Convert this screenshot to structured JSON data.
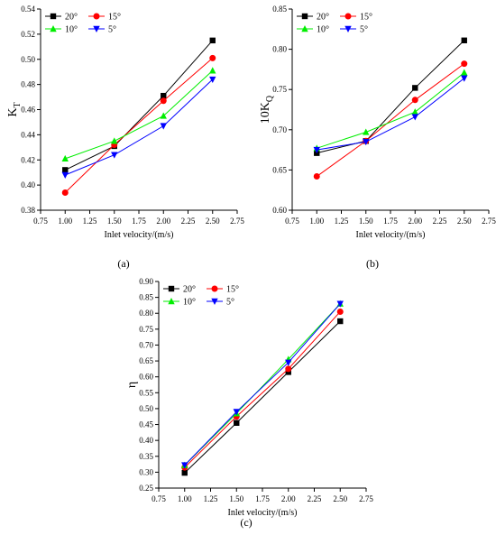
{
  "chart_data": [
    {
      "type": "line",
      "panel_label": "(a)",
      "xlabel": "Inlet velocity/(m/s)",
      "ylabel": "K",
      "ylabel_sub": "T",
      "xlim": [
        0.75,
        2.75
      ],
      "ylim": [
        0.38,
        0.54
      ],
      "xticks": [
        "0.75",
        "1.00",
        "1.25",
        "1.50",
        "1.75",
        "2.00",
        "2.25",
        "2.50",
        "2.75"
      ],
      "yticks": [
        "0.38",
        "0.40",
        "0.42",
        "0.44",
        "0.46",
        "0.48",
        "0.50",
        "0.52",
        "0.54"
      ],
      "x": [
        1.0,
        1.5,
        2.0,
        2.5
      ],
      "legend_position": "top-left",
      "series": [
        {
          "name": "20°",
          "color": "#000000",
          "marker": "square",
          "values": [
            0.412,
            0.431,
            0.471,
            0.515
          ]
        },
        {
          "name": "15°",
          "color": "#ff0000",
          "marker": "circle",
          "values": [
            0.394,
            0.432,
            0.467,
            0.501
          ]
        },
        {
          "name": "10°",
          "color": "#00ee00",
          "marker": "triangle-up",
          "values": [
            0.421,
            0.435,
            0.455,
            0.491
          ]
        },
        {
          "name": "5°",
          "color": "#0000ff",
          "marker": "triangle-down",
          "values": [
            0.408,
            0.424,
            0.447,
            0.484
          ]
        }
      ]
    },
    {
      "type": "line",
      "panel_label": "(b)",
      "xlabel": "Inlet velocity/(m/s)",
      "ylabel": "10K",
      "ylabel_sub": "Q",
      "xlim": [
        0.75,
        2.75
      ],
      "ylim": [
        0.6,
        0.85
      ],
      "xticks": [
        "0.75",
        "1.00",
        "1.25",
        "1.50",
        "1.75",
        "2.00",
        "2.25",
        "2.50",
        "2.75"
      ],
      "yticks": [
        "0.60",
        "0.65",
        "0.70",
        "0.75",
        "0.80",
        "0.85"
      ],
      "x": [
        1.0,
        1.5,
        2.0,
        2.5
      ],
      "legend_position": "top-left",
      "series": [
        {
          "name": "20°",
          "color": "#000000",
          "marker": "square",
          "values": [
            0.671,
            0.686,
            0.752,
            0.811
          ]
        },
        {
          "name": "15°",
          "color": "#ff0000",
          "marker": "circle",
          "values": [
            0.642,
            0.686,
            0.737,
            0.782
          ]
        },
        {
          "name": "10°",
          "color": "#00ee00",
          "marker": "triangle-up",
          "values": [
            0.677,
            0.697,
            0.722,
            0.771
          ]
        },
        {
          "name": "5°",
          "color": "#0000ff",
          "marker": "triangle-down",
          "values": [
            0.675,
            0.685,
            0.716,
            0.764
          ]
        }
      ]
    },
    {
      "type": "line",
      "panel_label": "(c)",
      "xlabel": "Inlet velocity/(m/s)",
      "ylabel": "η",
      "ylabel_sub": "",
      "xlim": [
        0.75,
        2.75
      ],
      "ylim": [
        0.25,
        0.9
      ],
      "xticks": [
        "0.75",
        "1.00",
        "1.25",
        "1.50",
        "1.75",
        "2.00",
        "2.25",
        "2.50",
        "2.75"
      ],
      "yticks": [
        "0.25",
        "0.30",
        "0.35",
        "0.40",
        "0.45",
        "0.50",
        "0.55",
        "0.60",
        "0.65",
        "0.70",
        "0.75",
        "0.80",
        "0.85",
        "0.90"
      ],
      "x": [
        1.0,
        1.5,
        2.0,
        2.5
      ],
      "legend_position": "top-left",
      "series": [
        {
          "name": "20°",
          "color": "#000000",
          "marker": "square",
          "values": [
            0.298,
            0.455,
            0.615,
            0.775
          ]
        },
        {
          "name": "15°",
          "color": "#ff0000",
          "marker": "circle",
          "values": [
            0.315,
            0.475,
            0.625,
            0.805
          ]
        },
        {
          "name": "10°",
          "color": "#00ee00",
          "marker": "triangle-up",
          "values": [
            0.322,
            0.485,
            0.655,
            0.83
          ]
        },
        {
          "name": "5°",
          "color": "#0000ff",
          "marker": "triangle-down",
          "values": [
            0.322,
            0.49,
            0.645,
            0.83
          ]
        }
      ]
    }
  ]
}
